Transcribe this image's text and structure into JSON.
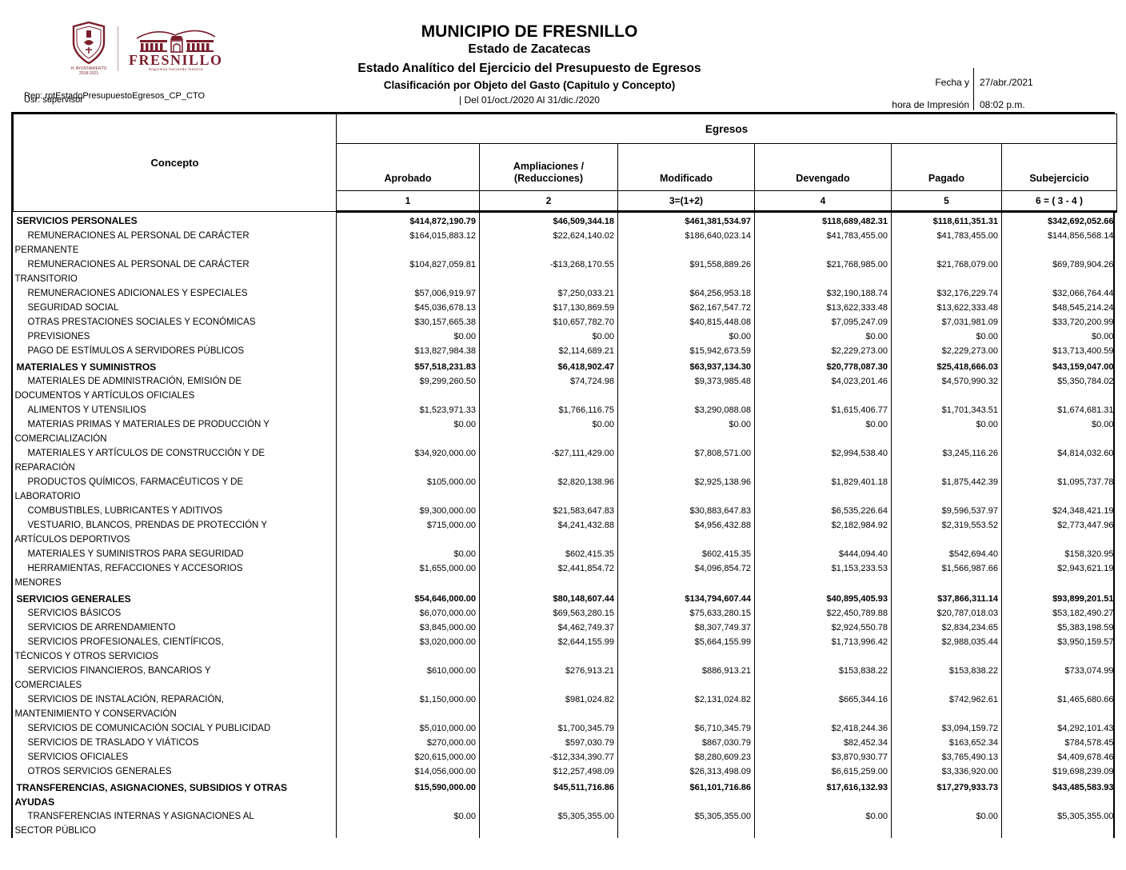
{
  "header": {
    "title": "MUNICIPIO DE FRESNILLO",
    "state": "Estado de Zacatecas",
    "report_title": "Estado Analítico del Ejercicio del Presupuesto de Egresos",
    "classification": "Clasificación por Objeto del Gasto (Capitulo y Concepto)",
    "period": "| Del 01/oct./2020 Al 31/dic./2020",
    "report_id": "Rep: rptEstadoPresupuestoEgresos_CP_CTO",
    "user": "Usr: supervisor",
    "print_label_line1": "Fecha y",
    "print_label_line2": "hora de Impresión",
    "print_date": "27/abr./2021",
    "print_time": "08:02 p.m.",
    "logo": {
      "crest_caption_line1": "H. AYUNTAMIENTO",
      "crest_caption_line2": "2018-2021",
      "name": "FRESNILLO",
      "tagline": "Seguimos haciendo historia",
      "brand_color": "#7a1f2d"
    }
  },
  "table": {
    "concepto_label": "Concepto",
    "egresos_label": "Egresos",
    "columns": [
      "Aprobado",
      "Ampliaciones / (Reducciones)",
      "Modificado",
      "Devengado",
      "Pagado",
      "Subejercicio"
    ],
    "column_numbers": [
      "1",
      "2",
      "3=(1+2)",
      "4",
      "5",
      "6 = ( 3 - 4 )"
    ],
    "rows": [
      {
        "concept": "SERVICIOS PERSONALES",
        "bold": true,
        "values": [
          "$414,872,190.79",
          "$46,509,344.18",
          "$461,381,534.97",
          "$118,689,482.31",
          "$118,611,351.31",
          "$342,692,052.66"
        ]
      },
      {
        "concept": "REMUNERACIONES AL PERSONAL DE CARÁCTER PERMANENTE",
        "bold": false,
        "values": [
          "$164,015,883.12",
          "$22,624,140.02",
          "$186,640,023.14",
          "$41,783,455.00",
          "$41,783,455.00",
          "$144,856,568.14"
        ]
      },
      {
        "concept": "REMUNERACIONES AL PERSONAL DE CARÁCTER TRANSITORIO",
        "bold": false,
        "values": [
          "$104,827,059.81",
          "-$13,268,170.55",
          "$91,558,889.26",
          "$21,768,985.00",
          "$21,768,079.00",
          "$69,789,904.26"
        ]
      },
      {
        "concept": "REMUNERACIONES ADICIONALES Y ESPECIALES",
        "bold": false,
        "values": [
          "$57,006,919.97",
          "$7,250,033.21",
          "$64,256,953.18",
          "$32,190,188.74",
          "$32,176,229.74",
          "$32,066,764.44"
        ]
      },
      {
        "concept": "SEGURIDAD SOCIAL",
        "bold": false,
        "values": [
          "$45,036,678.13",
          "$17,130,869.59",
          "$62,167,547.72",
          "$13,622,333.48",
          "$13,622,333.48",
          "$48,545,214.24"
        ]
      },
      {
        "concept": "OTRAS PRESTACIONES SOCIALES Y ECONÓMICAS",
        "bold": false,
        "values": [
          "$30,157,665.38",
          "$10,657,782.70",
          "$40,815,448.08",
          "$7,095,247.09",
          "$7,031,981.09",
          "$33,720,200.99"
        ]
      },
      {
        "concept": "PREVISIONES",
        "bold": false,
        "values": [
          "$0.00",
          "$0.00",
          "$0.00",
          "$0.00",
          "$0.00",
          "$0.00"
        ]
      },
      {
        "concept": "PAGO DE ESTÍMULOS A SERVIDORES PÚBLICOS",
        "bold": false,
        "values": [
          "$13,827,984.38",
          "$2,114,689.21",
          "$15,942,673.59",
          "$2,229,273.00",
          "$2,229,273.00",
          "$13,713,400.59"
        ]
      },
      {
        "concept": "MATERIALES Y SUMINISTROS",
        "bold": true,
        "values": [
          "$57,518,231.83",
          "$6,418,902.47",
          "$63,937,134.30",
          "$20,778,087.30",
          "$25,418,666.03",
          "$43,159,047.00"
        ]
      },
      {
        "concept": "MATERIALES DE ADMINISTRACIÓN, EMISIÓN DE DOCUMENTOS Y ARTÍCULOS OFICIALES",
        "bold": false,
        "values": [
          "$9,299,260.50",
          "$74,724.98",
          "$9,373,985.48",
          "$4,023,201.46",
          "$4,570,990.32",
          "$5,350,784.02"
        ]
      },
      {
        "concept": "ALIMENTOS Y UTENSILIOS",
        "bold": false,
        "values": [
          "$1,523,971.33",
          "$1,766,116.75",
          "$3,290,088.08",
          "$1,615,406.77",
          "$1,701,343.51",
          "$1,674,681.31"
        ]
      },
      {
        "concept": "MATERIAS PRIMAS Y MATERIALES DE PRODUCCIÓN Y COMERCIALIZACIÓN",
        "bold": false,
        "values": [
          "$0.00",
          "$0.00",
          "$0.00",
          "$0.00",
          "$0.00",
          "$0.00"
        ]
      },
      {
        "concept": "MATERIALES Y ARTÍCULOS DE CONSTRUCCIÓN Y DE REPARACIÓN",
        "bold": false,
        "values": [
          "$34,920,000.00",
          "-$27,111,429.00",
          "$7,808,571.00",
          "$2,994,538.40",
          "$3,245,116.26",
          "$4,814,032.60"
        ]
      },
      {
        "concept": "PRODUCTOS QUÍMICOS, FARMACÉUTICOS Y DE LABORATORIO",
        "bold": false,
        "values": [
          "$105,000.00",
          "$2,820,138.96",
          "$2,925,138.96",
          "$1,829,401.18",
          "$1,875,442.39",
          "$1,095,737.78"
        ]
      },
      {
        "concept": "COMBUSTIBLES, LUBRICANTES Y ADITIVOS",
        "bold": false,
        "values": [
          "$9,300,000.00",
          "$21,583,647.83",
          "$30,883,647.83",
          "$6,535,226.64",
          "$9,596,537.97",
          "$24,348,421.19"
        ]
      },
      {
        "concept": "VESTUARIO, BLANCOS, PRENDAS DE PROTECCIÓN Y ARTÍCULOS DEPORTIVOS",
        "bold": false,
        "values": [
          "$715,000.00",
          "$4,241,432.88",
          "$4,956,432.88",
          "$2,182,984.92",
          "$2,319,553.52",
          "$2,773,447.96"
        ]
      },
      {
        "concept": "MATERIALES Y SUMINISTROS PARA SEGURIDAD",
        "bold": false,
        "values": [
          "$0.00",
          "$602,415.35",
          "$602,415.35",
          "$444,094.40",
          "$542,694.40",
          "$158,320.95"
        ]
      },
      {
        "concept": "HERRAMIENTAS, REFACCIONES Y ACCESORIOS MENORES",
        "bold": false,
        "values": [
          "$1,655,000.00",
          "$2,441,854.72",
          "$4,096,854.72",
          "$1,153,233.53",
          "$1,566,987.66",
          "$2,943,621.19"
        ]
      },
      {
        "concept": "SERVICIOS GENERALES",
        "bold": true,
        "values": [
          "$54,646,000.00",
          "$80,148,607.44",
          "$134,794,607.44",
          "$40,895,405.93",
          "$37,866,311.14",
          "$93,899,201.51"
        ]
      },
      {
        "concept": "SERVICIOS BÁSICOS",
        "bold": false,
        "values": [
          "$6,070,000.00",
          "$69,563,280.15",
          "$75,633,280.15",
          "$22,450,789.88",
          "$20,787,018.03",
          "$53,182,490.27"
        ]
      },
      {
        "concept": "SERVICIOS DE ARRENDAMIENTO",
        "bold": false,
        "values": [
          "$3,845,000.00",
          "$4,462,749.37",
          "$8,307,749.37",
          "$2,924,550.78",
          "$2,834,234.65",
          "$5,383,198.59"
        ]
      },
      {
        "concept": "SERVICIOS PROFESIONALES, CIENTÍFICOS, TÉCNICOS Y OTROS SERVICIOS",
        "bold": false,
        "values": [
          "$3,020,000.00",
          "$2,644,155.99",
          "$5,664,155.99",
          "$1,713,996.42",
          "$2,988,035.44",
          "$3,950,159.57"
        ]
      },
      {
        "concept": "SERVICIOS FINANCIEROS, BANCARIOS Y COMERCIALES",
        "bold": false,
        "values": [
          "$610,000.00",
          "$276,913.21",
          "$886,913.21",
          "$153,838.22",
          "$153,838.22",
          "$733,074.99"
        ]
      },
      {
        "concept": "SERVICIOS DE INSTALACIÓN, REPARACIÓN, MANTENIMIENTO Y CONSERVACIÓN",
        "bold": false,
        "values": [
          "$1,150,000.00",
          "$981,024.82",
          "$2,131,024.82",
          "$665,344.16",
          "$742,962.61",
          "$1,465,680.66"
        ]
      },
      {
        "concept": "SERVICIOS DE COMUNICACIÓN SOCIAL Y PUBLICIDAD",
        "bold": false,
        "values": [
          "$5,010,000.00",
          "$1,700,345.79",
          "$6,710,345.79",
          "$2,418,244.36",
          "$3,094,159.72",
          "$4,292,101.43"
        ]
      },
      {
        "concept": "SERVICIOS DE TRASLADO Y VIÁTICOS",
        "bold": false,
        "values": [
          "$270,000.00",
          "$597,030.79",
          "$867,030.79",
          "$82,452.34",
          "$163,652.34",
          "$784,578.45"
        ]
      },
      {
        "concept": "SERVICIOS OFICIALES",
        "bold": false,
        "values": [
          "$20,615,000.00",
          "-$12,334,390.77",
          "$8,280,609.23",
          "$3,870,930.77",
          "$3,765,490.13",
          "$4,409,678.46"
        ]
      },
      {
        "concept": "OTROS SERVICIOS GENERALES",
        "bold": false,
        "values": [
          "$14,056,000.00",
          "$12,257,498.09",
          "$26,313,498.09",
          "$6,615,259.00",
          "$3,336,920.00",
          "$19,698,239.09"
        ]
      },
      {
        "concept": "TRANSFERENCIAS, ASIGNACIONES, SUBSIDIOS Y OTRAS AYUDAS",
        "bold": true,
        "values": [
          "$15,590,000.00",
          "$45,511,716.86",
          "$61,101,716.86",
          "$17,616,132.93",
          "$17,279,933.73",
          "$43,485,583.93"
        ]
      },
      {
        "concept": "TRANSFERENCIAS INTERNAS Y ASIGNACIONES AL SECTOR PÚBLICO",
        "bold": false,
        "values": [
          "$0.00",
          "$5,305,355.00",
          "$5,305,355.00",
          "$0.00",
          "$0.00",
          "$5,305,355.00"
        ]
      }
    ]
  }
}
